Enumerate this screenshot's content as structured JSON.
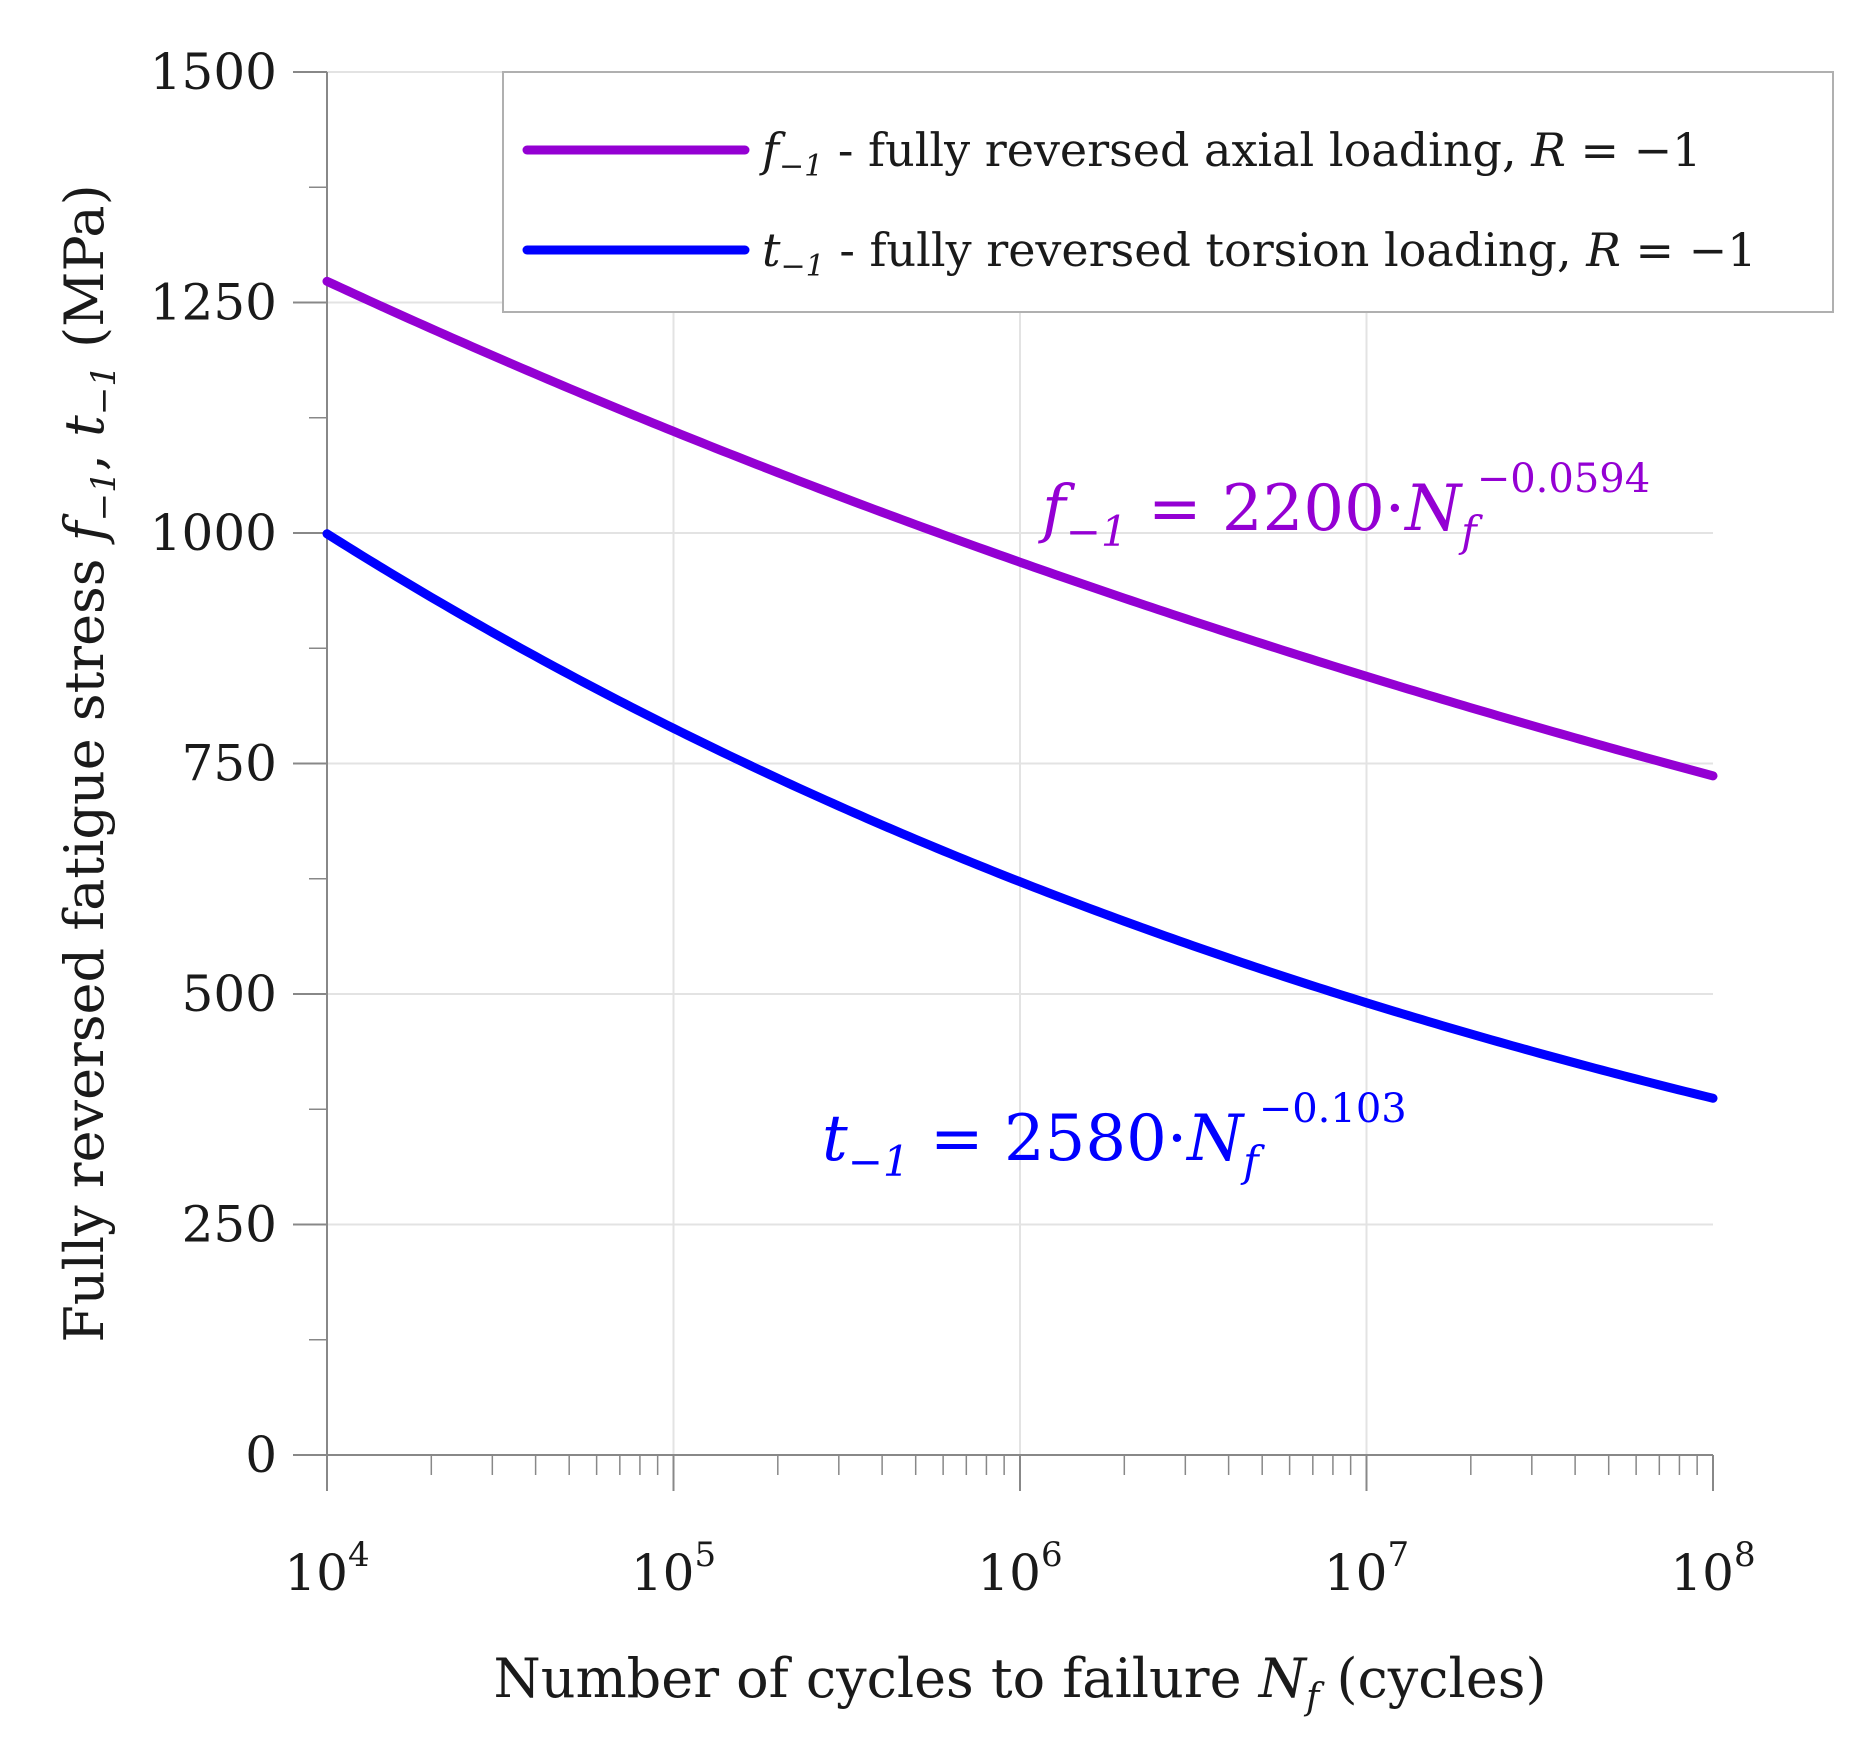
{
  "chart_data": {
    "type": "line",
    "x_scale": "log",
    "title": "",
    "xlabel": "Number of cycles to failure N_f (cycles)",
    "ylabel": "Fully reversed fatigue stress f_-1, t_-1 (MPa)",
    "xlim": [
      10000,
      100000000
    ],
    "ylim": [
      0,
      1500
    ],
    "grid": true,
    "legend_position": "top-right",
    "x_ticks": [
      {
        "value": 10000,
        "base": "10",
        "exp": "4"
      },
      {
        "value": 100000,
        "base": "10",
        "exp": "5"
      },
      {
        "value": 1000000,
        "base": "10",
        "exp": "6"
      },
      {
        "value": 10000000,
        "base": "10",
        "exp": "7"
      },
      {
        "value": 100000000,
        "base": "10",
        "exp": "8"
      }
    ],
    "y_ticks": [
      {
        "value": 0,
        "label": "0"
      },
      {
        "value": 250,
        "label": "250"
      },
      {
        "value": 500,
        "label": "500"
      },
      {
        "value": 750,
        "label": "750"
      },
      {
        "value": 1000,
        "label": "1000"
      },
      {
        "value": 1250,
        "label": "1250"
      },
      {
        "value": 1500,
        "label": "1500"
      }
    ],
    "series": [
      {
        "name": "f_-1 - fully reversed axial loading, R = -1",
        "symbol": "f",
        "subscript": "−1",
        "legend_label": " - fully reversed axial loading, ",
        "legend_r": "R",
        "legend_r_value": " = −1",
        "color": "#9400D3",
        "coefficient": 2200,
        "exponent": -0.0594,
        "equation": {
          "lhs": "f",
          "sub": "−1",
          "rhs": " = 2200·",
          "var": "N",
          "var_sub": "f",
          "sup": "−0.0594"
        },
        "x": [
          10000,
          31623,
          100000,
          316228,
          1000000,
          3162278,
          10000000,
          31622777,
          100000000
        ],
        "y": [
          1284,
          1200,
          1125,
          1045,
          975,
          912,
          853,
          797,
          745
        ]
      },
      {
        "name": "t_-1 - fully reversed torsion loading, R = -1",
        "symbol": "t",
        "subscript": "−1",
        "legend_label": " - fully reversed torsion loading, ",
        "legend_r": "R",
        "legend_r_value": " = −1",
        "color": "#0000FF",
        "coefficient": 2580,
        "exponent": -0.103,
        "equation": {
          "lhs": "t",
          "sub": "−1",
          "rhs": " = 2580·",
          "var": "N",
          "var_sub": "f",
          "sup": "−0.103"
        },
        "x": [
          10000,
          31623,
          100000,
          316228,
          1000000,
          3162278,
          10000000,
          31622777,
          100000000
        ],
        "y": [
          1000,
          882,
          787,
          700,
          622,
          553,
          492,
          438,
          389
        ]
      }
    ]
  }
}
